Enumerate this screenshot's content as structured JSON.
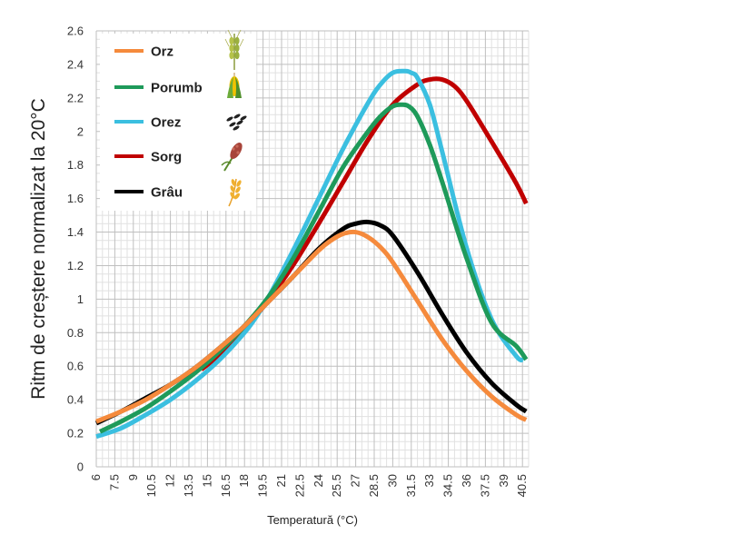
{
  "chart_data": {
    "type": "line",
    "title": "",
    "xlabel": "Temperatură (°C)",
    "ylabel": "Ritm de creștere normalizat la 20°C",
    "xlim": [
      6,
      41
    ],
    "ylim": [
      0,
      2.6
    ],
    "x_ticks": [
      "6",
      "7.5",
      "9",
      "10.5",
      "12",
      "13.5",
      "15",
      "16.5",
      "18",
      "19.5",
      "21",
      "22.5",
      "24",
      "25.5",
      "27",
      "28.5",
      "30",
      "31.5",
      "33",
      "34.5",
      "36",
      "37.5",
      "39",
      "40.5"
    ],
    "y_ticks": [
      "0",
      "0.2",
      "0.4",
      "0.6",
      "0.8",
      "1",
      "1.2",
      "1.4",
      "1.6",
      "1.8",
      "2",
      "2.2",
      "2.4",
      "2.6"
    ],
    "grid": true,
    "legend_position": "top-left",
    "series": [
      {
        "name": "Orz",
        "color": "#f58a3c",
        "icon": "barley-icon",
        "x": [
          6,
          8,
          10,
          12,
          14,
          16,
          18,
          20,
          22,
          24,
          25,
          26,
          27,
          28,
          29,
          30,
          32,
          34,
          36,
          38,
          40,
          40.8
        ],
        "y": [
          0.27,
          0.33,
          0.4,
          0.49,
          0.59,
          0.71,
          0.84,
          0.99,
          1.14,
          1.29,
          1.35,
          1.39,
          1.4,
          1.37,
          1.31,
          1.22,
          0.99,
          0.76,
          0.57,
          0.42,
          0.31,
          0.28
        ]
      },
      {
        "name": "Porumb",
        "color": "#1e9a5a",
        "icon": "corn-icon",
        "x": [
          6.3,
          8,
          10,
          12,
          14,
          16,
          18,
          20,
          22,
          24,
          26,
          28,
          29,
          30,
          30.7,
          31.3,
          32,
          33,
          34,
          36,
          38,
          40,
          40.8
        ],
        "y": [
          0.21,
          0.27,
          0.35,
          0.45,
          0.56,
          0.69,
          0.84,
          1.02,
          1.25,
          1.52,
          1.79,
          2.0,
          2.09,
          2.15,
          2.16,
          2.15,
          2.09,
          1.92,
          1.7,
          1.24,
          0.86,
          0.72,
          0.64
        ]
      },
      {
        "name": "Orez",
        "color": "#3bbfe0",
        "icon": "rice-icon",
        "x": [
          6,
          8,
          10,
          12,
          14,
          16,
          18,
          19,
          20,
          22,
          24,
          26,
          28,
          29,
          30,
          31,
          31.5,
          32,
          33,
          34,
          36,
          38,
          40,
          40.6
        ],
        "y": [
          0.18,
          0.23,
          0.31,
          0.4,
          0.51,
          0.64,
          0.8,
          0.9,
          1.02,
          1.3,
          1.6,
          1.9,
          2.17,
          2.28,
          2.35,
          2.36,
          2.35,
          2.32,
          2.16,
          1.88,
          1.3,
          0.88,
          0.66,
          0.64
        ]
      },
      {
        "name": "Sorg",
        "color": "#c00000",
        "icon": "sorghum-icon",
        "x": [
          14.5,
          16,
          18,
          20,
          22,
          24,
          26,
          28,
          30,
          32,
          33,
          34,
          35,
          36,
          38,
          40,
          40.8
        ],
        "y": [
          0.58,
          0.67,
          0.82,
          1.0,
          1.21,
          1.45,
          1.7,
          1.95,
          2.16,
          2.28,
          2.31,
          2.31,
          2.27,
          2.18,
          1.94,
          1.69,
          1.57
        ]
      },
      {
        "name": "Grâu",
        "color": "#000000",
        "icon": "wheat-icon",
        "x": [
          6,
          8,
          10,
          12,
          14,
          16,
          18,
          20,
          22,
          24,
          26,
          27,
          28,
          29,
          30,
          32,
          34,
          36,
          38,
          40,
          40.8
        ],
        "y": [
          0.26,
          0.33,
          0.41,
          0.49,
          0.59,
          0.71,
          0.84,
          0.99,
          1.14,
          1.3,
          1.42,
          1.45,
          1.46,
          1.44,
          1.38,
          1.16,
          0.91,
          0.68,
          0.5,
          0.37,
          0.33
        ]
      }
    ]
  }
}
